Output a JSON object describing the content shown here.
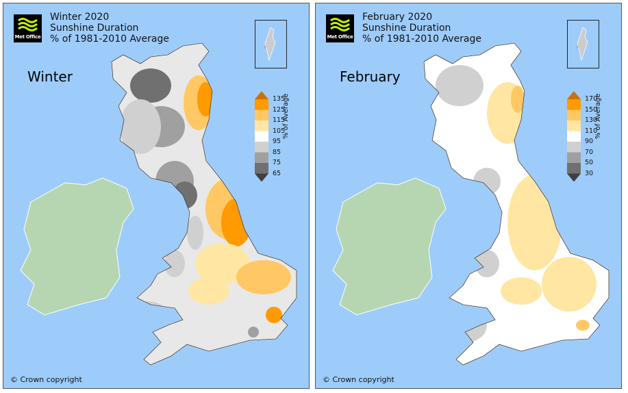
{
  "panels": [
    {
      "logo_text": "Met Office",
      "title_line1": "Winter 2020",
      "title_line2": "Sunshine Duration",
      "title_line3": "% of 1981-2010 Average",
      "season_label": "Winter",
      "legend_ticks": [
        "135",
        "125",
        "115",
        "105",
        "95",
        "85",
        "75",
        "65"
      ],
      "legend_label": "% of Average",
      "copyright": "© Crown copyright"
    },
    {
      "logo_text": "Met Office",
      "title_line1": "February 2020",
      "title_line2": "Sunshine Duration",
      "title_line3": "% of 1981-2010 Average",
      "season_label": "February",
      "legend_ticks": [
        "170",
        "150",
        "130",
        "110",
        "90",
        "70",
        "50",
        "30"
      ],
      "legend_label": "% of Average",
      "copyright": "© Crown copyright"
    }
  ],
  "colors": {
    "sea": "#9dccfa",
    "ireland": "#b5d6b1",
    "legend": [
      "#d07000",
      "#ff9a00",
      "#ffc865",
      "#ffe6a3",
      "#ffffff",
      "#d0d0d0",
      "#a0a0a0",
      "#707070",
      "#404040"
    ]
  }
}
